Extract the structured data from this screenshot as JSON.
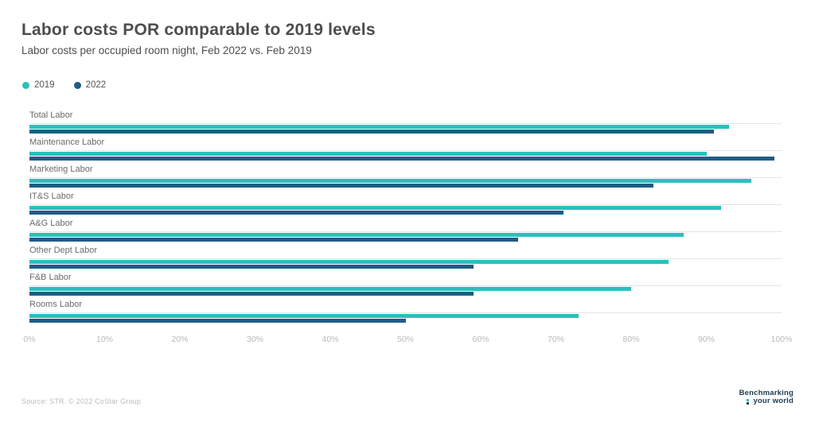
{
  "header": {
    "title": "Labor costs POR comparable to 2019 levels",
    "subtitle": "Labor costs per occupied room night, Feb 2022 vs. Feb 2019"
  },
  "legend": [
    {
      "label": "2019",
      "color": "#2ac0bd"
    },
    {
      "label": "2022",
      "color": "#1e5c85"
    }
  ],
  "chart_data": {
    "type": "bar",
    "orientation": "horizontal",
    "title": "Labor costs POR comparable to 2019 levels",
    "subtitle": "Labor costs per occupied room night, Feb 2022 vs. Feb 2019",
    "categories": [
      "Total Labor",
      "Maintenance Labor",
      "Marketing Labor",
      "IT&S Labor",
      "A&G Labor",
      "Other Dept Labor",
      "F&B Labor",
      "Rooms Labor"
    ],
    "series": [
      {
        "name": "2019",
        "color": "#2ac0bd",
        "values": [
          93,
          90,
          96,
          92,
          87,
          85,
          80,
          73
        ]
      },
      {
        "name": "2022",
        "color": "#1e5c85",
        "values": [
          91,
          99,
          83,
          71,
          65,
          59,
          59,
          50
        ]
      }
    ],
    "value_unit": "%",
    "xlim": [
      0,
      100
    ],
    "x_ticks": [
      "0%",
      "10%",
      "20%",
      "30%",
      "40%",
      "50%",
      "60%",
      "70%",
      "80%",
      "90%",
      "100%"
    ],
    "grid": "horizontal-category-baselines-only",
    "legend_position": "top-left"
  },
  "footer": {
    "source": "Source: STR. © 2022 CoStar Group",
    "logo_line1": "Benchmarking",
    "logo_line2": "your world"
  }
}
